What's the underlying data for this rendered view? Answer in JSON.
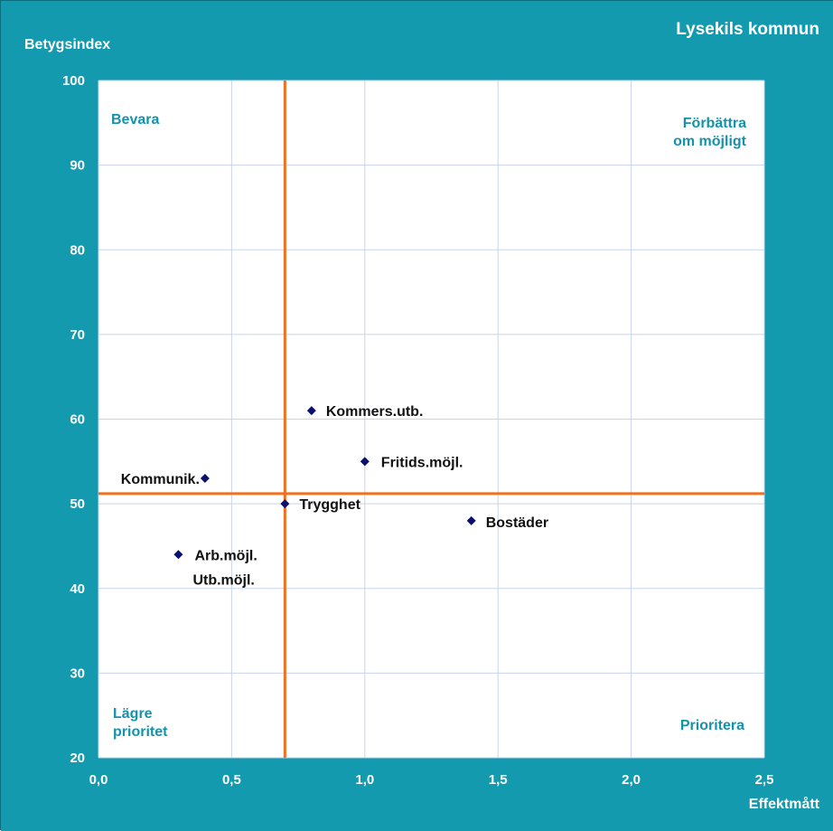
{
  "colors": {
    "background": "#149aaf",
    "plot_area": "#ffffff",
    "gridline": "#c9d3ee",
    "threshold_line": "#f07020",
    "marker": "#0b1070",
    "quadrant_text": "#1592ab",
    "axis_text": "#ffffff"
  },
  "chart_data": {
    "type": "scatter",
    "title": "Lysekils kommun",
    "xlabel": "Effektmått",
    "ylabel": "Betygsindex",
    "xlim": [
      0,
      2.5
    ],
    "ylim": [
      20,
      100
    ],
    "x_ticks": [
      0,
      0.5,
      1.0,
      1.5,
      2.0,
      2.5
    ],
    "x_tick_labels": [
      "0,0",
      "0,5",
      "1,0",
      "1,5",
      "2,0",
      "2,5"
    ],
    "y_ticks": [
      20,
      30,
      40,
      50,
      60,
      70,
      80,
      90,
      100
    ],
    "y_tick_labels": [
      "20",
      "30",
      "40",
      "50",
      "60",
      "70",
      "80",
      "90",
      "100"
    ],
    "grid": true,
    "threshold_x": 0.7,
    "threshold_y": 51.2,
    "quadrants": {
      "top_left": [
        "Bevara"
      ],
      "top_right": [
        "Förbättra",
        "om möjligt"
      ],
      "bottom_left": [
        "Lägre",
        "prioritet"
      ],
      "bottom_right": [
        "Prioritera"
      ]
    },
    "points": [
      {
        "label": "Kommers.utb.",
        "x": 0.8,
        "y": 61
      },
      {
        "label": "Fritids.möjl.",
        "x": 1.0,
        "y": 55
      },
      {
        "label": "Kommunik.",
        "x": 0.4,
        "y": 53
      },
      {
        "label": "Trygghet",
        "x": 0.7,
        "y": 50
      },
      {
        "label": "Bostäder",
        "x": 1.4,
        "y": 48
      },
      {
        "label": "Arb.möjl.",
        "x": 0.3,
        "y": 44
      },
      {
        "label": "Utb.möjl.",
        "x": 0.3,
        "y": 44
      }
    ]
  }
}
